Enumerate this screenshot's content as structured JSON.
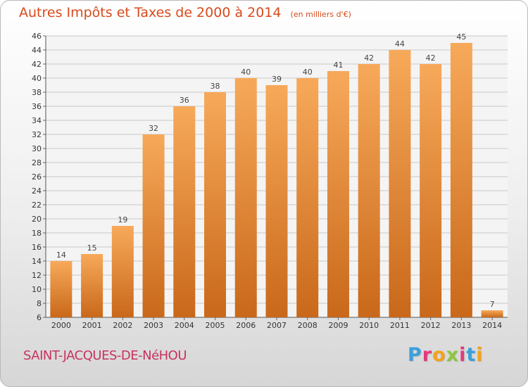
{
  "header": {
    "title": "Autres Impôts et Taxes de 2000 à 2014",
    "subtitle": "(en milliers d'€)"
  },
  "commune": "SAINT-JACQUES-DE-NéHOU",
  "logo": {
    "text": "Proxiti",
    "colors": [
      "#3aa0dc",
      "#e23a7a",
      "#f2a21c",
      "#8cc63f",
      "#e23a7a",
      "#3aa0dc",
      "#f2a21c"
    ]
  },
  "colors": {
    "bar_top": "#f7a95a",
    "bar_bottom": "#c9681a",
    "title": "#d84a1b",
    "commune": "#c8325e"
  },
  "chart_data": {
    "type": "bar",
    "title": "Autres Impôts et Taxes de 2000 à 2014",
    "subtitle": "(en milliers d'€)",
    "categories": [
      "2000",
      "2001",
      "2002",
      "2003",
      "2004",
      "2005",
      "2006",
      "2007",
      "2008",
      "2009",
      "2010",
      "2011",
      "2012",
      "2013",
      "2014"
    ],
    "values": [
      14,
      15,
      19,
      32,
      36,
      38,
      40,
      39,
      40,
      41,
      42,
      44,
      42,
      45,
      7
    ],
    "ylim": [
      6,
      46
    ],
    "yticks": [
      6,
      8,
      10,
      12,
      14,
      16,
      18,
      20,
      22,
      24,
      26,
      28,
      30,
      32,
      34,
      36,
      38,
      40,
      42,
      44,
      46
    ],
    "grid": true,
    "data_labels": true
  }
}
